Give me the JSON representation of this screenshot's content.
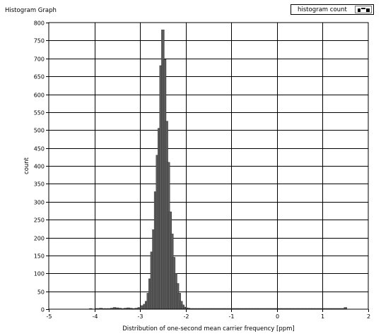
{
  "graph": {
    "title": "Histogram Graph",
    "legend_label": "histogram count",
    "legend_icon": "bar-plot-style-icon"
  },
  "chart_data": {
    "type": "bar",
    "xlabel": "Distribution of one-second mean carrier frequency [ppm]",
    "ylabel": "count",
    "xlim": [
      -5,
      2
    ],
    "ylim": [
      0,
      800
    ],
    "grid": true,
    "legend_position": "top-right",
    "x_ticks": [
      "-5",
      "-4",
      "-3",
      "-2",
      "-1",
      "0",
      "1",
      "2"
    ],
    "y_ticks": [
      "0",
      "50",
      "100",
      "150",
      "200",
      "250",
      "300",
      "350",
      "400",
      "450",
      "500",
      "550",
      "600",
      "650",
      "700",
      "750",
      "800"
    ],
    "bar_color": "#5a5a5a",
    "series": [
      {
        "x": [
          -4.08,
          -3.96,
          -3.92,
          -3.86,
          -3.8,
          -3.74,
          -3.68,
          -3.62,
          -3.56,
          -3.5,
          -3.44,
          -3.38,
          -3.32,
          -3.26,
          -3.2,
          -3.14,
          -3.08,
          -3.02,
          -2.96,
          -2.9,
          -2.86,
          -2.82,
          -2.78,
          -2.74,
          -2.7,
          -2.66,
          -2.62,
          -2.58,
          -2.54,
          -2.5,
          -2.46,
          -2.42,
          -2.38,
          -2.34,
          -2.3,
          -2.26,
          -2.22,
          -2.18,
          -2.14,
          -2.1,
          -2.06,
          -2.02,
          -1.98,
          -1.94,
          -1.9,
          -1.86,
          -1.82,
          -1.78,
          -1.74,
          -1.7,
          -1.66,
          -1.62,
          -1.58,
          -1.54,
          -1.5,
          -1.46,
          -1.42,
          -1.38,
          -1.34,
          -1.3,
          -1.26,
          -1.22,
          -1.18,
          -1.14,
          -1.1,
          -1.06,
          -1.02,
          -0.98,
          -0.94,
          -0.9,
          -0.86,
          -0.82,
          -0.78,
          -0.74,
          -0.7,
          -0.66,
          -0.62,
          -0.58,
          -0.54,
          -0.5,
          -0.46,
          -0.42,
          -0.38,
          -0.34,
          -0.3,
          -0.26,
          -0.22,
          -0.18,
          -0.14,
          -0.1,
          -0.06,
          -0.02,
          0.02,
          0.06,
          0.1,
          0.14,
          0.18,
          0.22,
          0.26,
          0.3,
          0.34,
          0.38,
          0.42,
          0.46,
          0.5,
          0.54,
          0.58,
          0.62,
          0.66,
          0.7,
          0.74,
          0.78,
          0.82,
          0.86,
          0.9,
          0.94,
          0.98,
          1.02,
          1.06,
          1.1,
          1.14,
          1.18,
          1.22,
          1.26,
          1.3,
          1.34,
          1.38,
          1.42,
          1.46,
          1.5
        ],
        "values": [
          2,
          1,
          2,
          3,
          2,
          1,
          2,
          3,
          5,
          4,
          3,
          2,
          3,
          4,
          3,
          2,
          3,
          5,
          10,
          14,
          22,
          45,
          85,
          160,
          222,
          328,
          430,
          505,
          680,
          780,
          697,
          525,
          410,
          272,
          210,
          145,
          100,
          72,
          45,
          22,
          12,
          6,
          4,
          3,
          2,
          2,
          2,
          2,
          1,
          2,
          1,
          2,
          1,
          2,
          1,
          1,
          2,
          1,
          1,
          2,
          1,
          1,
          2,
          1,
          1,
          1,
          2,
          1,
          1,
          2,
          1,
          1,
          1,
          2,
          1,
          1,
          1,
          1,
          2,
          1,
          1,
          1,
          1,
          2,
          1,
          1,
          1,
          1,
          1,
          2,
          1,
          1,
          1,
          1,
          1,
          1,
          2,
          1,
          1,
          1,
          1,
          1,
          1,
          1,
          2,
          1,
          1,
          1,
          1,
          1,
          1,
          1,
          1,
          1,
          1,
          1,
          1,
          1,
          1,
          1,
          1,
          1,
          1,
          1,
          1,
          1,
          1,
          1,
          1,
          5
        ]
      }
    ]
  }
}
